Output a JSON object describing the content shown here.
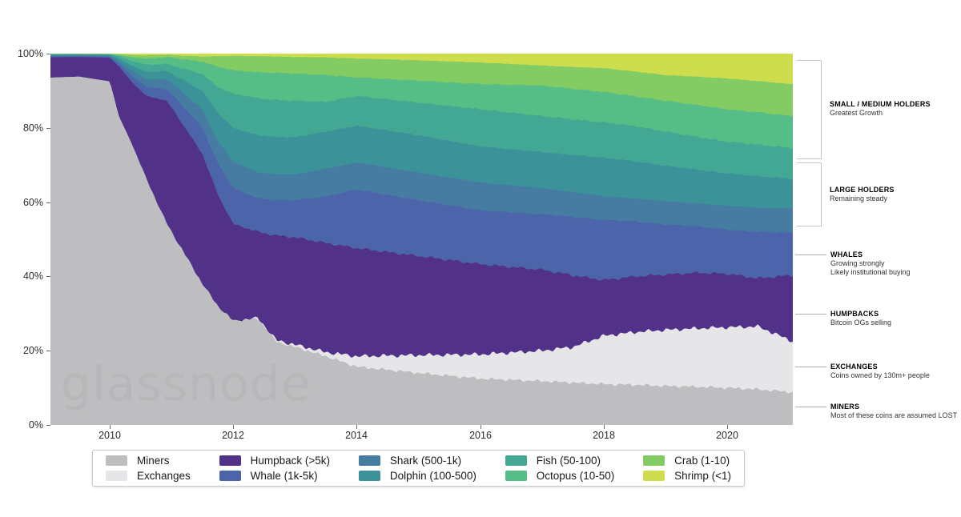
{
  "watermark": "glassnode",
  "axes": {
    "y_ticks": [
      "100%",
      "80%",
      "60%",
      "40%",
      "20%",
      "0%"
    ],
    "x_ticks": [
      "2010",
      "2012",
      "2014",
      "2016",
      "2018",
      "2020"
    ]
  },
  "legend": {
    "items": [
      {
        "label": "Miners",
        "color": "#bebec0"
      },
      {
        "label": "Exchanges",
        "color": "#e6e6e8"
      },
      {
        "label": "Humpback (>5k)",
        "color": "#523189"
      },
      {
        "label": "Whale (1k-5k)",
        "color": "#4c64a9"
      },
      {
        "label": "Shark (500-1k)",
        "color": "#477ca2"
      },
      {
        "label": "Dolphin (100-500)",
        "color": "#3b9299"
      },
      {
        "label": "Fish (50-100)",
        "color": "#42a894"
      },
      {
        "label": "Octopus (10-50)",
        "color": "#56bd86"
      },
      {
        "label": "Crab (1-10)",
        "color": "#83cb63"
      },
      {
        "label": "Shrimp (<1)",
        "color": "#cedd4d"
      }
    ]
  },
  "annotations": [
    {
      "title": "SMALL / MEDIUM HOLDERS",
      "line1": "Greatest Growth",
      "line2": ""
    },
    {
      "title": "LARGE HOLDERS",
      "line1": "Remaining steady",
      "line2": ""
    },
    {
      "title": "WHALES",
      "line1": "Growing strongly",
      "line2": "Likely institutional buying"
    },
    {
      "title": "HUMPBACKS",
      "line1": "Bitcoin OGs selling",
      "line2": ""
    },
    {
      "title": "EXCHANGES",
      "line1": "Coins owned by 130m+ people",
      "line2": ""
    },
    {
      "title": "MINERS",
      "line1": "Most of these coins are assumed LOST",
      "line2": ""
    }
  ],
  "chart_data": {
    "type": "area",
    "stacked": true,
    "percent_of_total": true,
    "ylim": [
      0,
      100
    ],
    "grid": false,
    "legend_position": "bottom",
    "x_render_range": [
      2009.04,
      2021.06
    ],
    "x_tick_years": [
      2010,
      2012,
      2014,
      2016,
      2018,
      2020
    ],
    "x_years": [
      2009.0,
      2009.5,
      2010.0,
      2010.15,
      2010.35,
      2010.6,
      2010.9,
      2011.0,
      2011.5,
      2011.75,
      2012.0,
      2012.4,
      2012.7,
      2013.0,
      2013.5,
      2014.0,
      2015.0,
      2016.0,
      2017.0,
      2017.5,
      2018.0,
      2018.5,
      2019.0,
      2019.5,
      2020.0,
      2020.5,
      2021.05
    ],
    "series": [
      {
        "name": "Miners",
        "color": "#bebec0",
        "values": [
          93.5,
          93.8,
          92.5,
          83,
          76,
          66,
          55,
          52,
          38,
          32,
          28,
          28.6,
          22.4,
          21,
          18.5,
          15.7,
          14,
          12.5,
          11.8,
          11.4,
          11,
          10.8,
          10.5,
          10.3,
          10,
          9.6,
          8.8
        ]
      },
      {
        "name": "Exchanges",
        "color": "#e6e6e8",
        "values": [
          0,
          0,
          0,
          0,
          0,
          0,
          0,
          0,
          0,
          0,
          0,
          0.2,
          0.4,
          0.6,
          1.1,
          2.8,
          4.8,
          6.5,
          8.2,
          9.6,
          13,
          14.2,
          15.1,
          15.7,
          16.3,
          16.9,
          13.7
        ]
      },
      {
        "name": "Humpback (>5k)",
        "color": "#523189",
        "values": [
          5.5,
          5.3,
          6.4,
          13.5,
          16.5,
          22.5,
          32.5,
          33.5,
          35,
          30,
          26.1,
          23.2,
          28.2,
          28.9,
          29.4,
          29.1,
          26.7,
          24.3,
          21.8,
          19.3,
          15,
          15,
          14.9,
          15,
          14.4,
          13,
          17.7
        ]
      },
      {
        "name": "Whale (1k-5k)",
        "color": "#4c64a9",
        "values": [
          0.3,
          0.25,
          0.3,
          0.8,
          1.5,
          2.5,
          3,
          3.7,
          7,
          8.5,
          9.7,
          9,
          9.5,
          10,
          12.5,
          15.8,
          15,
          14.5,
          14.9,
          15.7,
          16.2,
          14.8,
          13.5,
          12.5,
          11.9,
          12.5,
          11.4
        ]
      },
      {
        "name": "Shark (500-1k)",
        "color": "#477ca2",
        "values": [
          0.2,
          0.2,
          0.25,
          0.7,
          1.5,
          2,
          2.7,
          3,
          5,
          6,
          7.1,
          7,
          7,
          7,
          7.5,
          7.3,
          7.5,
          7.5,
          7.1,
          6.7,
          6.4,
          6.2,
          6.3,
          6.2,
          6.4,
          6.5,
          6.5
        ]
      },
      {
        "name": "Dolphin (100-500)",
        "color": "#3b9299",
        "values": [
          0.2,
          0.17,
          0.2,
          0.6,
          1.3,
          2,
          2.1,
          2.4,
          5,
          7.5,
          9.1,
          10,
          10,
          10,
          10,
          9.9,
          10,
          9.7,
          9.7,
          10,
          10.4,
          10,
          9.5,
          9.1,
          8.7,
          8.5,
          8
        ]
      },
      {
        "name": "Fish (50-100)",
        "color": "#42a894",
        "values": [
          0.15,
          0.14,
          0.15,
          0.6,
          1.2,
          2,
          1.9,
          2.2,
          4.5,
          7,
          9.2,
          10,
          10,
          9.8,
          8,
          8,
          8.8,
          10,
          9.7,
          9.6,
          9.5,
          9.5,
          9.2,
          8.8,
          8.6,
          8.5,
          8.2
        ]
      },
      {
        "name": "Octopus (10-50)",
        "color": "#56bd86",
        "values": [
          0.07,
          0.07,
          0.1,
          0.4,
          1,
          1.6,
          1.8,
          2.05,
          3.3,
          5.5,
          6.3,
          7,
          7.3,
          7.3,
          7.2,
          5,
          5.9,
          6.8,
          8.2,
          8.2,
          8.2,
          8,
          8.3,
          8.6,
          8.7,
          8.7,
          8.6
        ]
      },
      {
        "name": "Crab (1-10)",
        "color": "#83cb63",
        "values": [
          0.05,
          0.04,
          0.05,
          0.25,
          0.6,
          0.9,
          0.65,
          0.75,
          1.4,
          2.8,
          3.9,
          4.3,
          4.4,
          4.5,
          4.8,
          5.1,
          5.5,
          5.8,
          5.4,
          5.9,
          6.4,
          6.7,
          6.9,
          7.6,
          8.3,
          8.4,
          8.6
        ]
      },
      {
        "name": "Shrimp (<1)",
        "color": "#cedd4d",
        "values": [
          0.03,
          0.03,
          0.05,
          0.15,
          0.4,
          0.5,
          0.35,
          0.4,
          0.8,
          0.7,
          0.6,
          0.7,
          0.8,
          0.9,
          1,
          1.3,
          1.8,
          2.4,
          3.2,
          3.6,
          3.9,
          4.8,
          5.8,
          6.2,
          6.7,
          7.4,
          8.2
        ]
      }
    ]
  }
}
